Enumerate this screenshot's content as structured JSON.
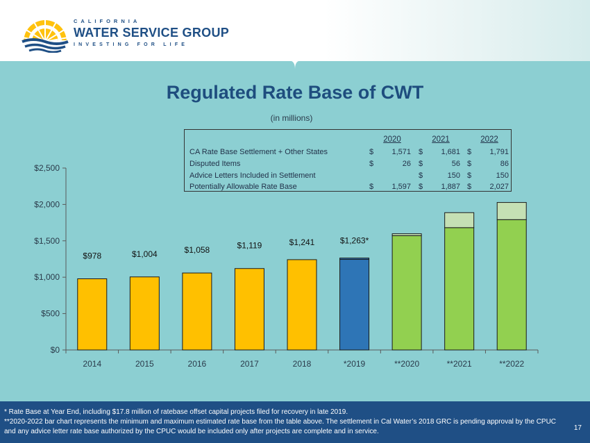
{
  "header": {
    "logo_top": "CALIFORNIA",
    "logo_main": "WATER SERVICE GROUP",
    "logo_sub": "INVESTING FOR LIFE"
  },
  "colors": {
    "background": "#8ccfd2",
    "title": "#1e4d7e",
    "historical_bar": "#ffc000",
    "bar_2019": "#2e75b6",
    "projected_base": "#92d050",
    "projected_extra": "#c5e0b4",
    "footer": "#1f4f85"
  },
  "table": {
    "years": [
      "2020",
      "2021",
      "2022"
    ],
    "rows": [
      {
        "label": "CA Rate Base Settlement + Other States",
        "cells": [
          {
            "dollar": "$",
            "amount": "1,571"
          },
          {
            "dollar": "$",
            "amount": "1,681"
          },
          {
            "dollar": "$",
            "amount": "1,791"
          }
        ]
      },
      {
        "label": "Disputed Items",
        "cells": [
          {
            "dollar": "$",
            "amount": "26"
          },
          {
            "dollar": "$",
            "amount": "56"
          },
          {
            "dollar": "$",
            "amount": "86"
          }
        ]
      },
      {
        "label": "Advice Letters Included in Settlement",
        "cells": [
          {
            "dollar": "",
            "amount": ""
          },
          {
            "dollar": "$",
            "amount": "150"
          },
          {
            "dollar": "$",
            "amount": "150"
          }
        ]
      },
      {
        "label": "Potentially Allowable Rate Base",
        "cells": [
          {
            "dollar": "$",
            "amount": "1,597"
          },
          {
            "dollar": "$",
            "amount": "1,887"
          },
          {
            "dollar": "$",
            "amount": "2,027"
          }
        ]
      }
    ]
  },
  "chart_data": {
    "type": "bar",
    "title": "Regulated Rate Base of CWT",
    "subtitle": "(in millions)",
    "categories": [
      "2014",
      "2015",
      "2016",
      "2017",
      "2018",
      "*2019",
      "**2020",
      "**2021",
      "**2022"
    ],
    "ylim": [
      0,
      2500
    ],
    "yticks": [
      0,
      500,
      1000,
      1500,
      2000,
      2500
    ],
    "ytick_labels": [
      "$0",
      "$500",
      "$1,000",
      "$1,500",
      "$2,000",
      "$2,500"
    ],
    "grid": false,
    "stacked": true,
    "series": [
      {
        "values": [
          978,
          1004,
          1058,
          1119,
          1241,
          1245,
          1571,
          1681,
          1791
        ]
      },
      {
        "values": [
          0,
          0,
          0,
          0,
          0,
          18,
          26,
          206,
          236
        ]
      }
    ],
    "data_labels": [
      "$978",
      "$1,004",
      "$1,058",
      "$1,119",
      "$1,241",
      "$1,263*",
      "",
      "",
      ""
    ]
  },
  "footer": {
    "note1": "* Rate Base at Year End, including $17.8 million of ratebase offset capital projects filed for recovery in late 2019.",
    "note2": "**2020-2022 bar chart represents the minimum and maximum estimated rate base from the table above. The settlement in Cal Water’s 2018 GRC is pending approval by the CPUC and any advice letter rate base authorized by the CPUC would be included only after projects are complete and in service.",
    "page_number": "17"
  }
}
